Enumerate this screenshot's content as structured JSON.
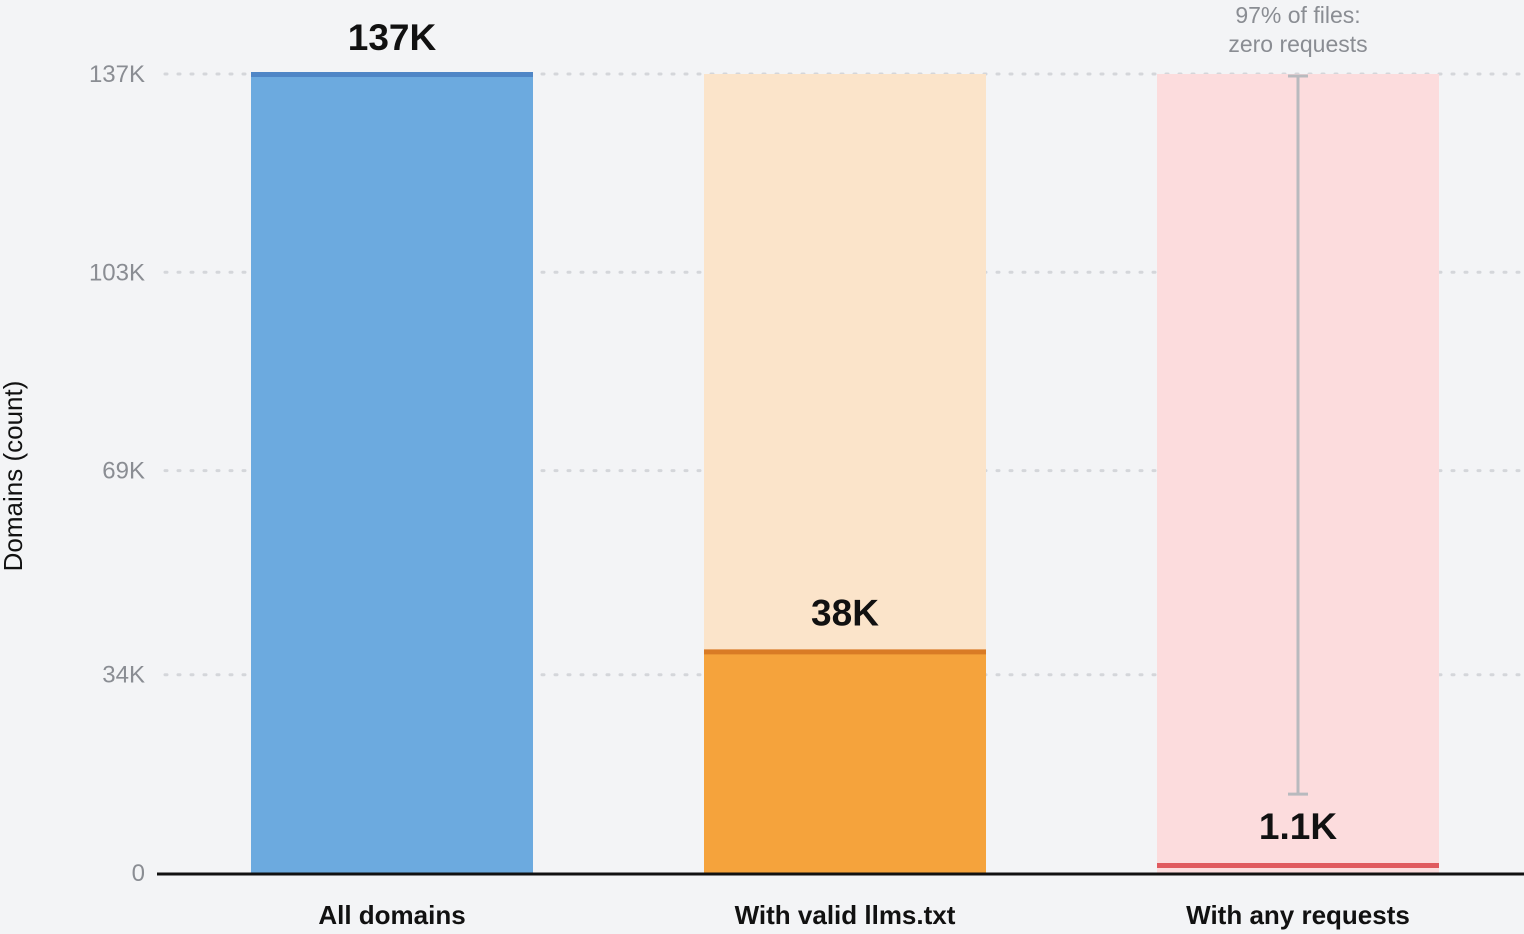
{
  "chart_data": {
    "type": "bar",
    "xlabel": "",
    "ylabel": "Domains (count)",
    "ylim": [
      0,
      137
    ],
    "yticks": [
      {
        "value": 0,
        "label": "0"
      },
      {
        "value": 34,
        "label": "34K"
      },
      {
        "value": 69,
        "label": "69K"
      },
      {
        "value": 103,
        "label": "103K"
      },
      {
        "value": 137,
        "label": "137K"
      }
    ],
    "grid": true,
    "categories": [
      "All domains",
      "With valid llms.txt",
      "With any requests"
    ],
    "values": [
      137,
      38,
      1.1
    ],
    "background_values": [
      137,
      137,
      137
    ],
    "value_labels": [
      "137K",
      "38K",
      "1.1K"
    ],
    "colors": {
      "fill": [
        "#6caadf",
        "#f5a33c",
        "#fcdcdd"
      ],
      "background": [
        "#6caadf",
        "#fbe4ca",
        "#fcdcdd"
      ],
      "edge": [
        "#4f86c6",
        "#d97b25",
        "#e05a5f"
      ]
    },
    "annotation": {
      "category_index": 2,
      "lines": [
        "97% of files:",
        "zero requests"
      ],
      "from": 137,
      "to": 13
    }
  }
}
